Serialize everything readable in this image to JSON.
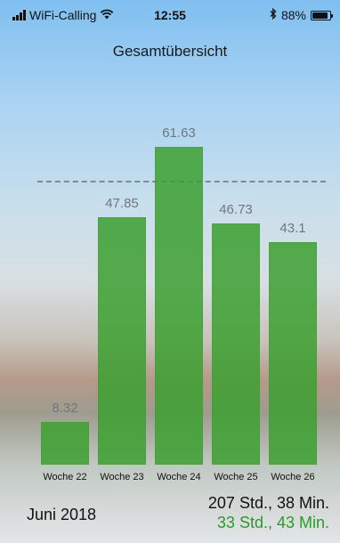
{
  "status_bar": {
    "carrier": "WiFi-Calling",
    "time": "12:55",
    "battery": "88%",
    "icons": [
      "signal-icon",
      "wifi-icon",
      "bluetooth-icon",
      "battery-icon"
    ]
  },
  "title": "Gesamtübersicht",
  "chart_data": {
    "type": "bar",
    "categories": [
      "Woche 22",
      "Woche 23",
      "Woche 24",
      "Woche 25",
      "Woche 26"
    ],
    "values": [
      8.32,
      47.85,
      61.63,
      46.73,
      43.1
    ],
    "value_labels": [
      "8.32",
      "47.85",
      "61.63",
      "46.73",
      "43.1"
    ],
    "ylim": [
      0,
      66
    ],
    "reference_line": 55,
    "bar_color": "#3ca030"
  },
  "footer": {
    "month": "Juni 2018",
    "total": "207 Std., 38 Min.",
    "sub_total": "33 Std., 43 Min."
  }
}
